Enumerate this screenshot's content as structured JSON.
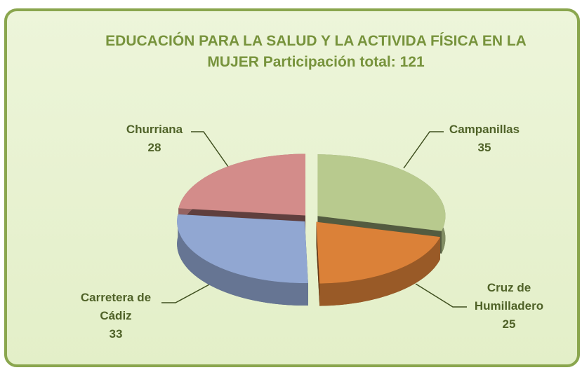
{
  "chart_data": {
    "type": "pie",
    "title": "EDUCACIÓN PARA LA SALUD Y LA ACTIVIDA FÍSICA EN LA MUJER Participación total: 121",
    "categories": [
      "Campanillas",
      "Cruz de Humilladero",
      "Carretera de Cádiz",
      "Churriana"
    ],
    "values": [
      35,
      25,
      33,
      28
    ],
    "colors": [
      "#b8ca8e",
      "#db8138",
      "#91a7d2",
      "#d38c8a"
    ]
  }
}
